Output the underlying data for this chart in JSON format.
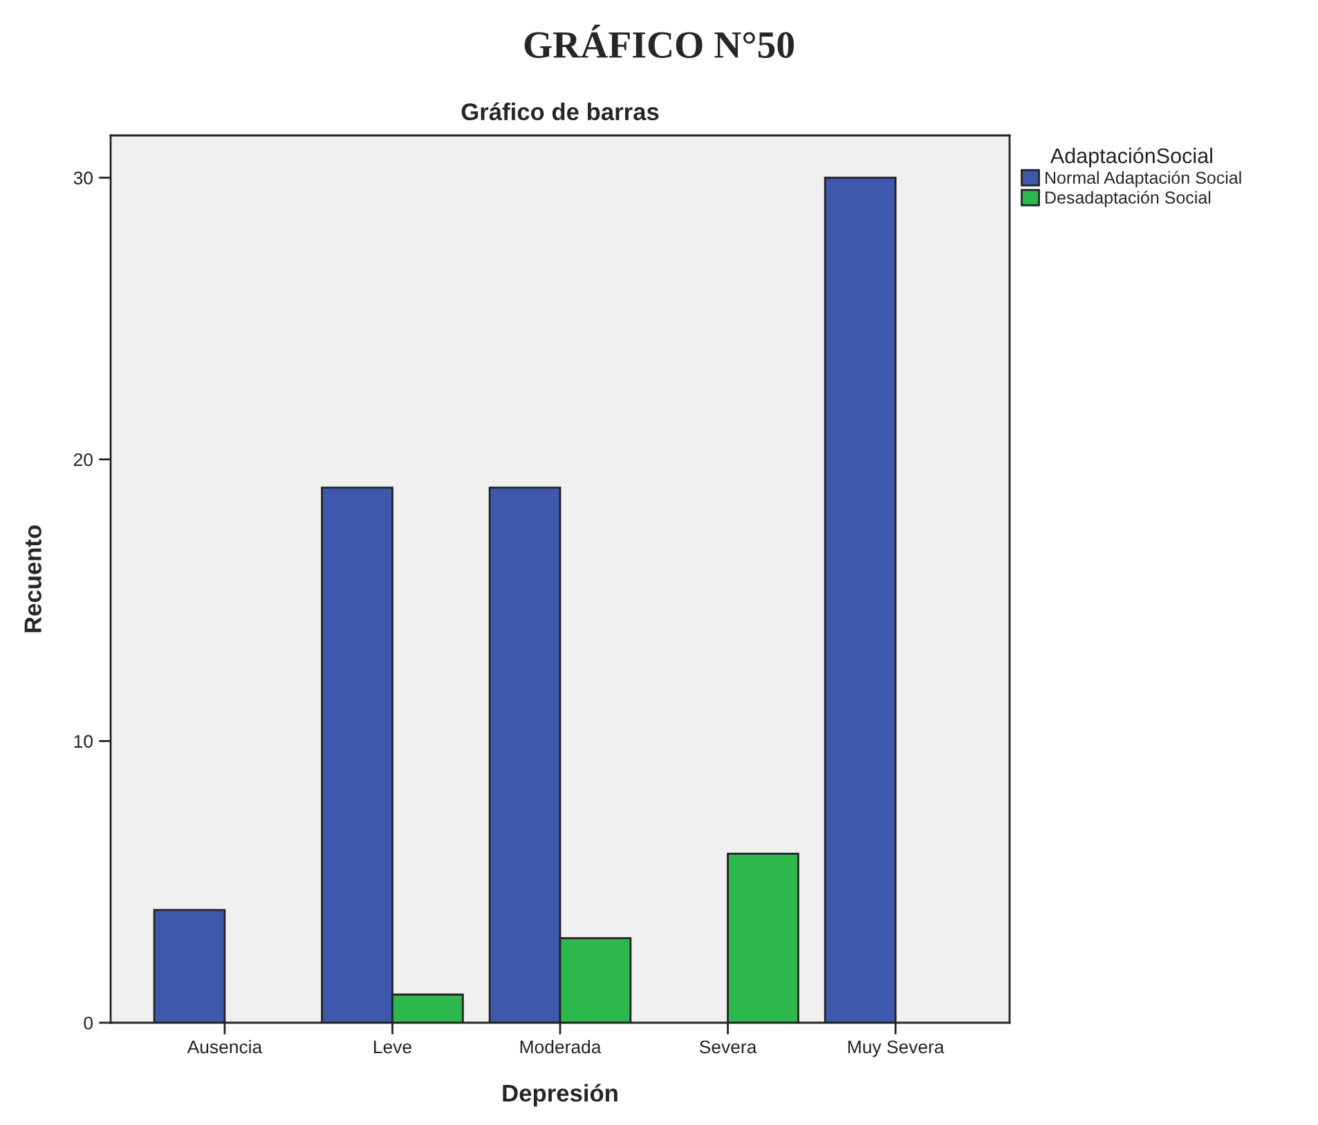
{
  "chart_data": {
    "type": "bar",
    "title": "GRÁFICO N°50",
    "subtitle": "Gráfico de barras",
    "xlabel": "Depresión",
    "ylabel": "Recuento",
    "legend_title": "AdaptaciónSocial",
    "categories": [
      "Ausencia",
      "Leve",
      "Moderada",
      "Severa",
      "Muy Severa"
    ],
    "series": [
      {
        "name": "Normal Adaptación Social",
        "color": "#3e58ac",
        "values": [
          4,
          19,
          19,
          null,
          30
        ]
      },
      {
        "name": "Desadaptación Social",
        "color": "#2db84d",
        "values": [
          null,
          1,
          3,
          6,
          null
        ]
      }
    ],
    "ylim": [
      0,
      31.5
    ],
    "yticks": [
      0,
      10,
      20,
      30
    ],
    "grid": false,
    "legend": "top right"
  }
}
